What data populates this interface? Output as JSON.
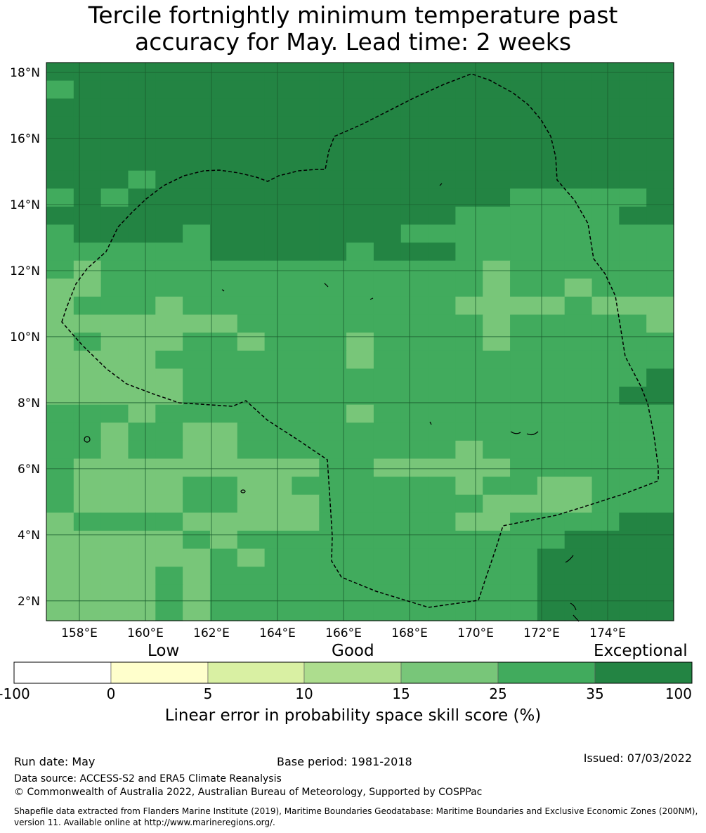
{
  "title_line1": "Tercile fortnightly minimum temperature past",
  "title_line2": "accuracy for May. Lead time: 2 weeks",
  "map": {
    "lon_range": [
      157,
      176
    ],
    "lat_range": [
      1.4,
      18.3
    ],
    "lon_ticks": [
      "158°E",
      "160°E",
      "162°E",
      "164°E",
      "166°E",
      "168°E",
      "170°E",
      "172°E",
      "174°E"
    ],
    "lat_ticks": [
      "18°N",
      "16°N",
      "14°N",
      "12°N",
      "10°N",
      "8°N",
      "6°N",
      "4°N",
      "2°N"
    ],
    "cell_colors": {
      "c": "#238443",
      "m": "#41ab5d",
      "l": "#78c679",
      "p": "#addd8e"
    }
  },
  "colorbar": {
    "categories": [
      "Low",
      "Good",
      "Exceptional"
    ],
    "ticks": [
      "-100",
      "0",
      "5",
      "10",
      "15",
      "25",
      "35",
      "100"
    ],
    "colors": [
      "#ffffff",
      "#ffffcc",
      "#d9f0a3",
      "#addd8e",
      "#78c679",
      "#41ab5d",
      "#238443"
    ],
    "xlabel": "Linear error in probability space skill score (%)"
  },
  "footer": {
    "run_date": "Run date: May",
    "base_period": "Base period: 1981-2018",
    "issued": "Issued: 07/03/2022",
    "data_source": "Data source: ACCESS-S2 and ERA5 Climate Reanalysis",
    "copyright": "© Commonwealth of Australia 2022, Australian Bureau of Meteorology, Supported by COSPPac",
    "shapefile": "Shapefile data extracted from Flanders Marine Institute (2019), Maritime Boundaries Geodatabase: Maritime Boundaries and Exclusive Economic Zones (200NM), version 11. Available online at http://www.marineregions.org/."
  }
}
